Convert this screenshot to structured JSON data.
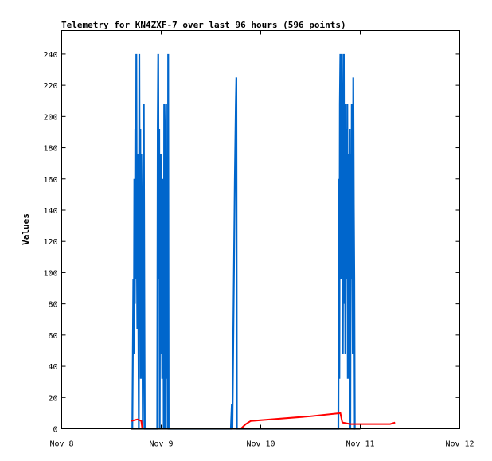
{
  "chart_data": {
    "type": "line",
    "title": "Telemetry for KN4ZXF-7 over last 96 hours (596 points)",
    "ylabel": "Values",
    "xlabel": "",
    "x_ticks": [
      "Nov 8",
      "Nov 9",
      "Nov 10",
      "Nov 11",
      "Nov 12"
    ],
    "x_range_days": [
      8,
      12
    ],
    "y_ticks": [
      0,
      20,
      40,
      60,
      80,
      100,
      120,
      140,
      160,
      180,
      200,
      220,
      240
    ],
    "ylim": [
      0,
      255
    ],
    "grid": false,
    "series": [
      {
        "color": "#0066cc",
        "points": [
          [
            8.71,
            0
          ],
          [
            8.72,
            96
          ],
          [
            8.725,
            48
          ],
          [
            8.73,
            160
          ],
          [
            8.735,
            80
          ],
          [
            8.74,
            192
          ],
          [
            8.745,
            96
          ],
          [
            8.75,
            240
          ],
          [
            8.755,
            120
          ],
          [
            8.76,
            64
          ],
          [
            8.765,
            176
          ],
          [
            8.77,
            80
          ],
          [
            8.775,
            0
          ],
          [
            8.78,
            240
          ],
          [
            8.785,
            112
          ],
          [
            8.79,
            192
          ],
          [
            8.795,
            32
          ],
          [
            8.8,
            176
          ],
          [
            8.805,
            144
          ],
          [
            8.81,
            80
          ],
          [
            8.815,
            0
          ],
          [
            8.82,
            128
          ],
          [
            8.825,
            208
          ],
          [
            8.83,
            96
          ],
          [
            8.835,
            0
          ],
          [
            8.84,
            0
          ],
          [
            8.96,
            0
          ],
          [
            8.965,
            192
          ],
          [
            8.97,
            240
          ],
          [
            8.975,
            96
          ],
          [
            8.98,
            192
          ],
          [
            8.985,
            0
          ],
          [
            8.99,
            128
          ],
          [
            8.995,
            176
          ],
          [
            9.0,
            48
          ],
          [
            9.005,
            144
          ],
          [
            9.01,
            32
          ],
          [
            9.015,
            80
          ],
          [
            9.02,
            160
          ],
          [
            9.025,
            0
          ],
          [
            9.03,
            208
          ],
          [
            9.035,
            128
          ],
          [
            9.04,
            0
          ],
          [
            9.045,
            176
          ],
          [
            9.05,
            208
          ],
          [
            9.055,
            32
          ],
          [
            9.06,
            96
          ],
          [
            9.065,
            0
          ],
          [
            9.07,
            240
          ],
          [
            9.075,
            0
          ],
          [
            9.08,
            0
          ],
          [
            9.7,
            0
          ],
          [
            9.71,
            16
          ],
          [
            9.715,
            0
          ],
          [
            9.73,
            96
          ],
          [
            9.74,
            160
          ],
          [
            9.75,
            208
          ],
          [
            9.755,
            225
          ],
          [
            9.76,
            0
          ],
          [
            9.765,
            0
          ],
          [
            10.78,
            0
          ],
          [
            10.785,
            160
          ],
          [
            10.79,
            32
          ],
          [
            10.795,
            208
          ],
          [
            10.8,
            240
          ],
          [
            10.805,
            96
          ],
          [
            10.81,
            176
          ],
          [
            10.815,
            240
          ],
          [
            10.82,
            144
          ],
          [
            10.825,
            48
          ],
          [
            10.83,
            176
          ],
          [
            10.835,
            240
          ],
          [
            10.84,
            80
          ],
          [
            10.845,
            208
          ],
          [
            10.85,
            48
          ],
          [
            10.855,
            144
          ],
          [
            10.86,
            192
          ],
          [
            10.865,
            96
          ],
          [
            10.87,
            208
          ],
          [
            10.875,
            32
          ],
          [
            10.88,
            144
          ],
          [
            10.885,
            176
          ],
          [
            10.89,
            64
          ],
          [
            10.895,
            192
          ],
          [
            10.9,
            0
          ],
          [
            10.905,
            176
          ],
          [
            10.91,
            96
          ],
          [
            10.915,
            208
          ],
          [
            10.92,
            128
          ],
          [
            10.925,
            48
          ],
          [
            10.93,
            225
          ],
          [
            10.935,
            144
          ],
          [
            10.94,
            96
          ],
          [
            10.945,
            0
          ],
          [
            10.95,
            0
          ]
        ]
      },
      {
        "color": "#ff0000",
        "points": [
          [
            8.7,
            5
          ],
          [
            8.76,
            6
          ],
          [
            8.8,
            5
          ],
          [
            8.81,
            0
          ],
          [
            9.8,
            0
          ],
          [
            9.85,
            3
          ],
          [
            9.9,
            5
          ],
          [
            10.5,
            8
          ],
          [
            10.8,
            10
          ],
          [
            10.82,
            4
          ],
          [
            10.9,
            3
          ],
          [
            11.0,
            3
          ],
          [
            11.2,
            3
          ],
          [
            11.3,
            3
          ],
          [
            11.35,
            4
          ]
        ]
      },
      {
        "color": "#000000",
        "points": [
          [
            8.7,
            0
          ],
          [
            11.0,
            0
          ]
        ]
      }
    ]
  }
}
